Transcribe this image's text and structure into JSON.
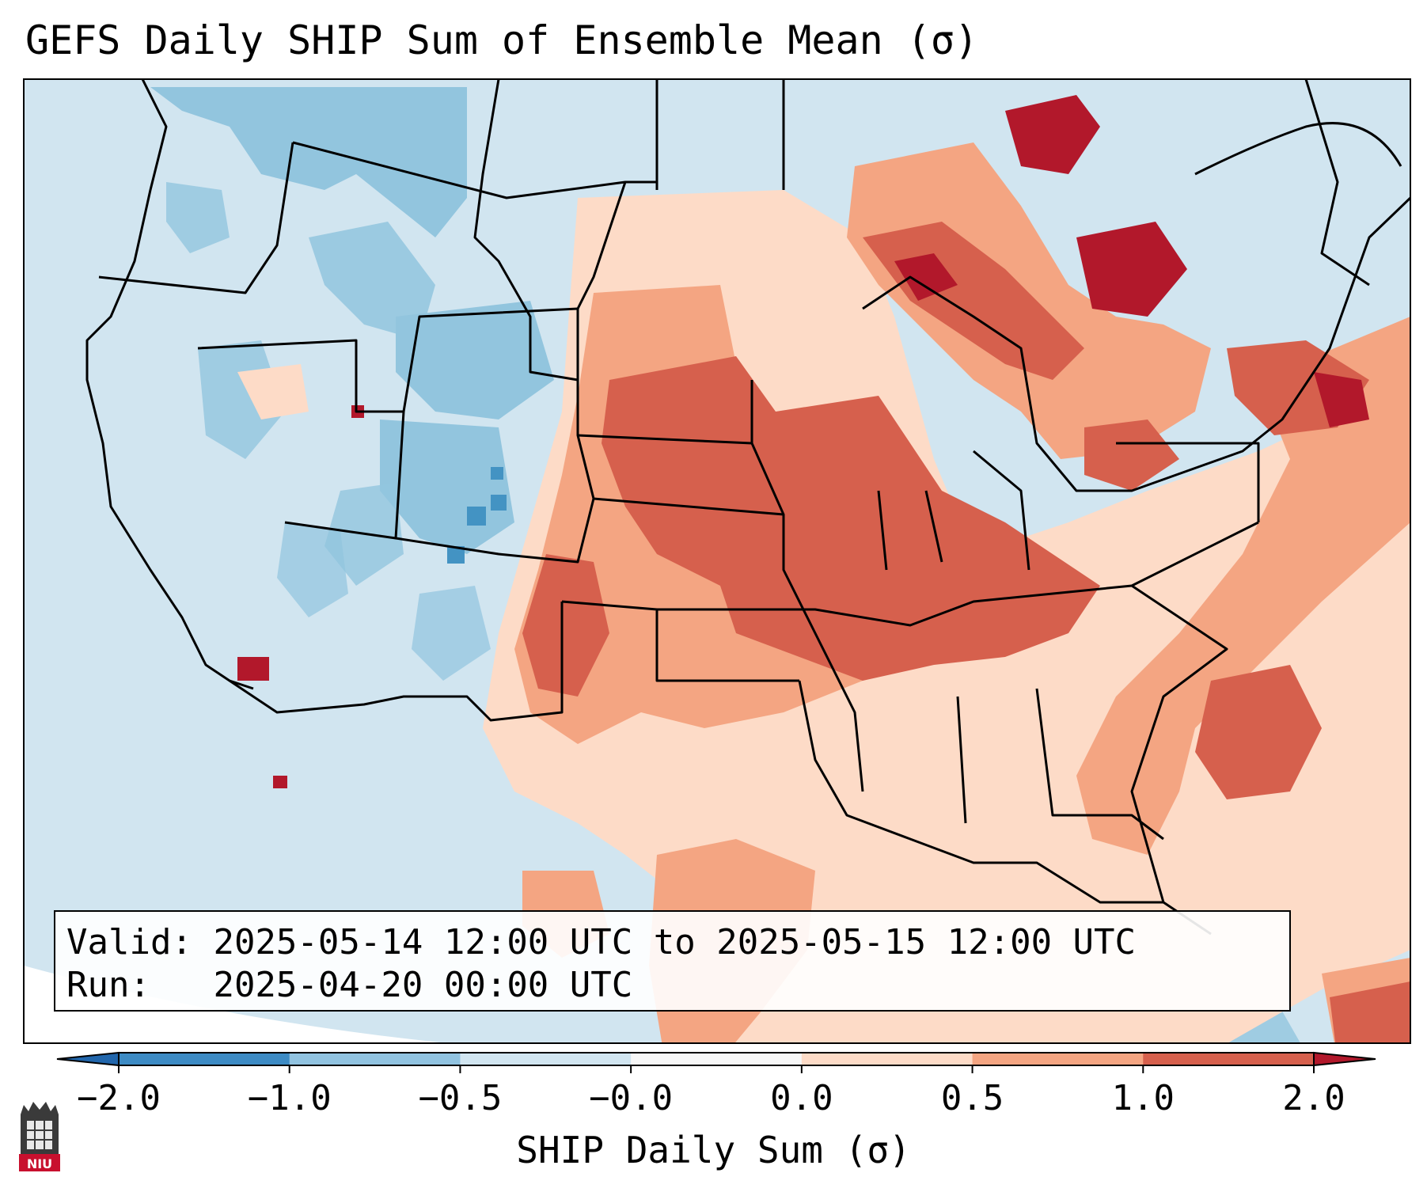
{
  "title": "GEFS Daily SHIP Sum of Ensemble Mean (σ)",
  "info": {
    "valid_label": "Valid:",
    "valid_range": "2025-05-14 12:00 UTC to 2025-05-15 12:00 UTC",
    "run_label": "Run:",
    "run_time": "2025-04-20 00:00 UTC"
  },
  "colorbar": {
    "label": "SHIP Daily Sum (σ)",
    "ticks": [
      "−2.0",
      "−1.0",
      "−0.5",
      "−0.0",
      "0.0",
      "0.5",
      "1.0",
      "2.0"
    ],
    "colors": [
      "#3d8bc4",
      "#91c3e0",
      "#d1e5f0",
      "#f7f7f7",
      "#fddbc7",
      "#f4a582",
      "#d6604d",
      "#b2182b"
    ],
    "extend": "both"
  },
  "logo": {
    "text": "NIU"
  },
  "map": {
    "region": "contiguous United States",
    "field_colors": {
      "strong_negative": "#4393c3",
      "negative": "#92c5de",
      "weak_negative": "#d1e5f0",
      "weak_positive": "#fddbc7",
      "positive": "#f4a582",
      "strong_positive": "#d6604d",
      "extreme_positive": "#b2182b"
    }
  }
}
